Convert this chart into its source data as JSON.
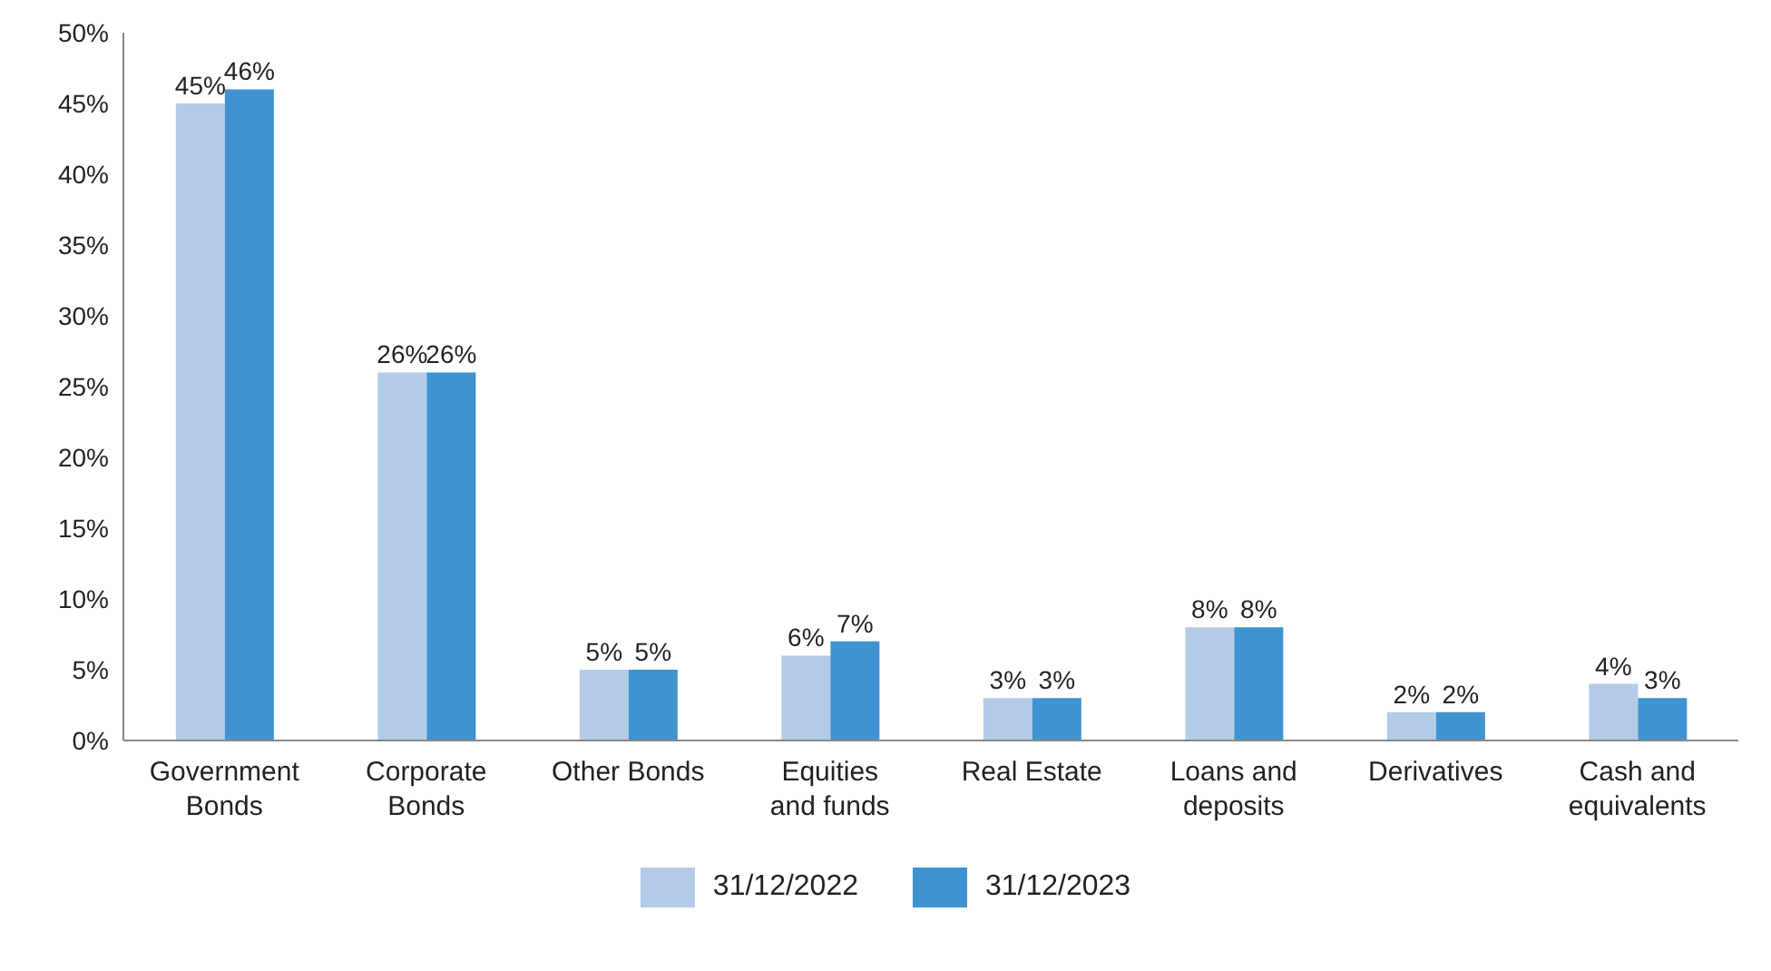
{
  "chart_data": {
    "type": "bar",
    "categories": [
      "Government\nBonds",
      "Corporate\nBonds",
      "Other Bonds",
      "Equities\nand funds",
      "Real Estate",
      "Loans and\ndeposits",
      "Derivatives",
      "Cash and\nequivalents"
    ],
    "series": [
      {
        "name": "31/12/2022",
        "color": "#b4cbe8",
        "values": [
          45,
          26,
          5,
          6,
          3,
          8,
          2,
          4
        ],
        "value_labels": [
          "45%",
          "26%",
          "5%",
          "6%",
          "3%",
          "8%",
          "2%",
          "4%"
        ]
      },
      {
        "name": "31/12/2023",
        "color": "#3f93d0",
        "values": [
          46,
          26,
          5,
          7,
          3,
          8,
          2,
          3
        ],
        "value_labels": [
          "46%",
          "26%",
          "5%",
          "7%",
          "3%",
          "8%",
          "2%",
          "3%"
        ]
      }
    ],
    "ylim": [
      0,
      50
    ],
    "yticks": [
      {
        "value": 0,
        "label": "0%"
      },
      {
        "value": 5,
        "label": "5%"
      },
      {
        "value": 10,
        "label": "10%"
      },
      {
        "value": 15,
        "label": "15%"
      },
      {
        "value": 20,
        "label": "20%"
      },
      {
        "value": 25,
        "label": "25%"
      },
      {
        "value": 30,
        "label": "30%"
      },
      {
        "value": 35,
        "label": "35%"
      },
      {
        "value": 40,
        "label": "40%"
      },
      {
        "value": 45,
        "label": "45%"
      },
      {
        "value": 50,
        "label": "50%"
      }
    ],
    "grid": false,
    "legend": "bottom"
  }
}
